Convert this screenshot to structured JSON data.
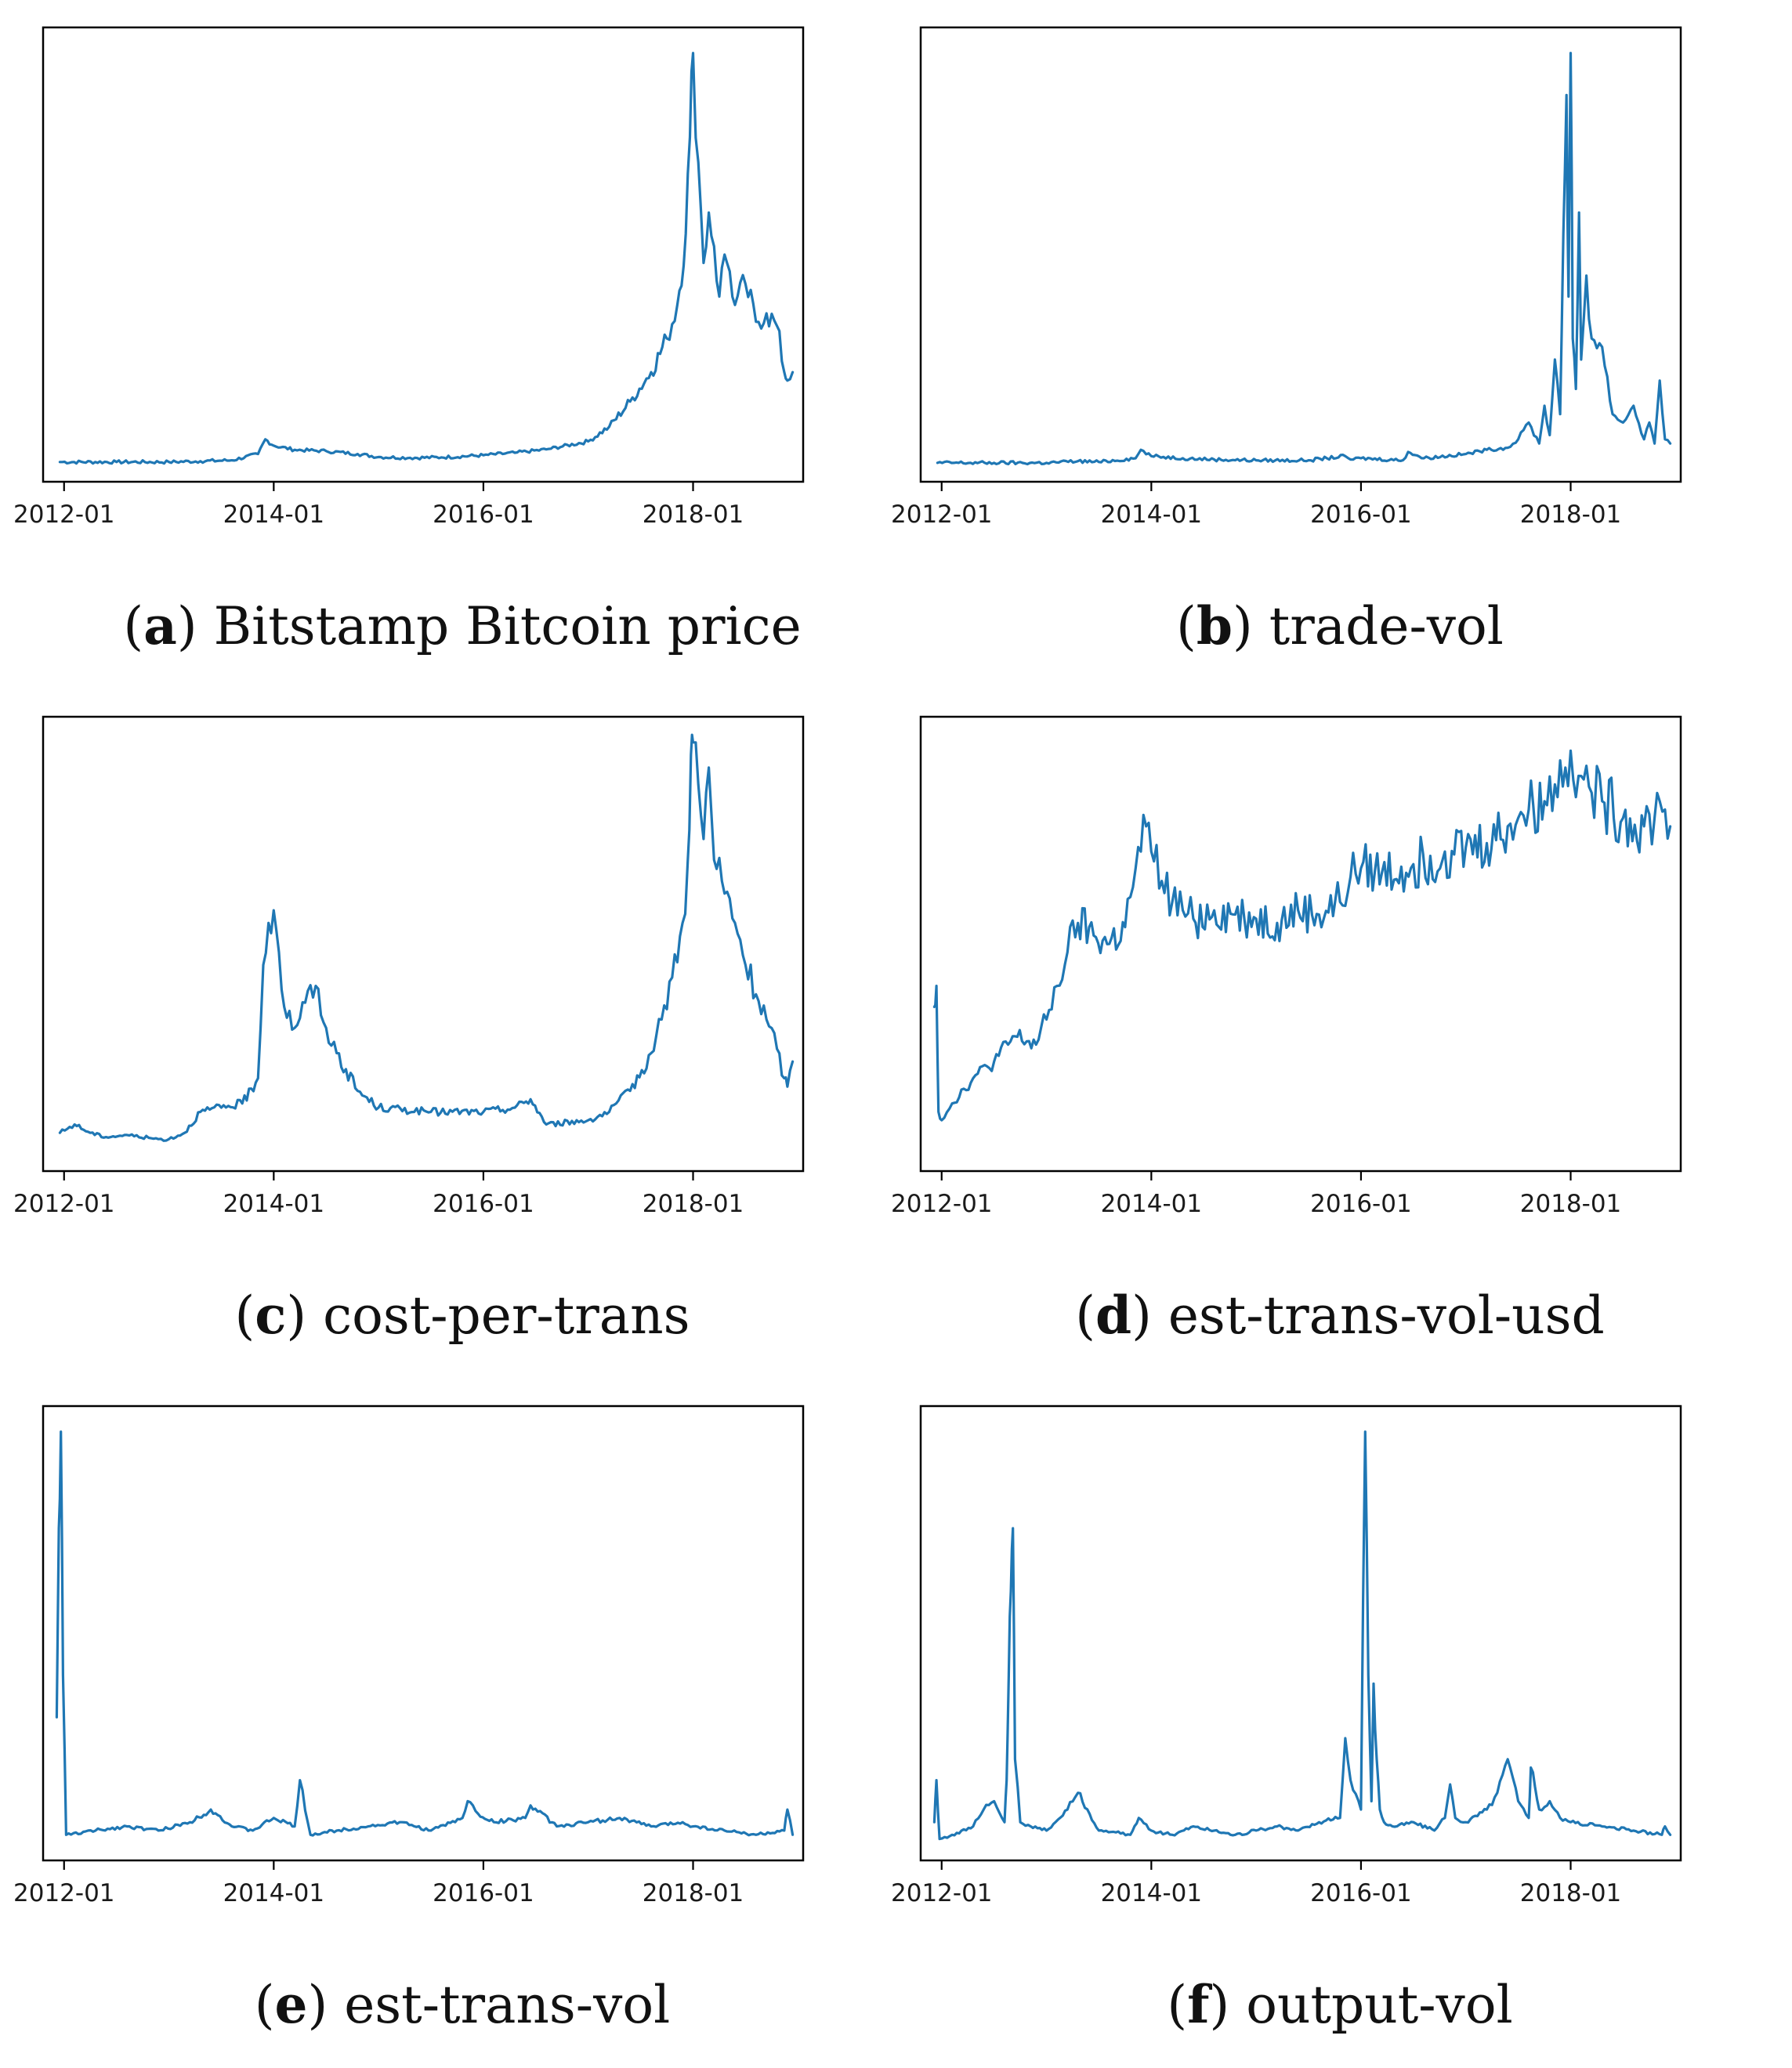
{
  "figure": {
    "line_color": "#1f77b4"
  },
  "chart_data": [
    {
      "type": "line",
      "id": "a",
      "letter": "a",
      "title": "Bitstamp Bitcoin price",
      "xlabel": "",
      "ylabel": "",
      "ylim": [
        0,
        100
      ],
      "x_ticks": [
        "2012-01",
        "2014-01",
        "2016-01",
        "2018-01"
      ],
      "series": [
        {
          "name": "Bitstamp Bitcoin price",
          "x": [
            2011.96,
            2012.5,
            2013.0,
            2013.3,
            2013.6,
            2013.85,
            2013.92,
            2014.0,
            2014.2,
            2014.5,
            2014.8,
            2015.0,
            2015.3,
            2015.6,
            2016.0,
            2016.3,
            2016.6,
            2017.0,
            2017.2,
            2017.4,
            2017.6,
            2017.75,
            2017.85,
            2017.93,
            2017.97,
            2018.0,
            2018.05,
            2018.1,
            2018.15,
            2018.2,
            2018.25,
            2018.3,
            2018.35,
            2018.4,
            2018.5,
            2018.6,
            2018.7,
            2018.8,
            2018.87,
            2018.9,
            2018.95
          ],
          "values": [
            0.6,
            0.6,
            0.6,
            0.8,
            1.0,
            2.5,
            6.0,
            4.5,
            3.5,
            3.2,
            2.5,
            1.8,
            1.6,
            1.7,
            2.2,
            2.8,
            3.6,
            5.5,
            9.0,
            15.0,
            22.0,
            30.0,
            38.0,
            55.0,
            78.0,
            98.0,
            72.0,
            48.0,
            60.0,
            52.0,
            40.0,
            50.0,
            46.0,
            38.0,
            43.0,
            34.0,
            36.0,
            33.0,
            22.0,
            20.0,
            22.0
          ]
        }
      ]
    },
    {
      "type": "line",
      "id": "b",
      "letter": "b",
      "title": "trade-vol",
      "xlabel": "",
      "ylabel": "",
      "ylim": [
        0,
        100
      ],
      "x_ticks": [
        "2012-01",
        "2014-01",
        "2016-01",
        "2018-01"
      ],
      "series": [
        {
          "name": "trade-vol",
          "x": [
            2011.96,
            2012.5,
            2013.0,
            2013.3,
            2013.5,
            2013.85,
            2013.9,
            2014.0,
            2014.3,
            2014.6,
            2015.0,
            2015.5,
            2015.85,
            2015.9,
            2016.0,
            2016.4,
            2016.45,
            2016.6,
            2017.0,
            2017.2,
            2017.4,
            2017.5,
            2017.6,
            2017.7,
            2017.75,
            2017.8,
            2017.85,
            2017.9,
            2017.93,
            2017.96,
            2017.98,
            2018.0,
            2018.02,
            2018.05,
            2018.08,
            2018.1,
            2018.15,
            2018.2,
            2018.3,
            2018.4,
            2018.5,
            2018.6,
            2018.7,
            2018.75,
            2018.8,
            2018.85,
            2018.9,
            2018.95
          ],
          "values": [
            0.4,
            0.4,
            0.4,
            0.8,
            0.6,
            1.5,
            3.5,
            2.0,
            1.5,
            1.2,
            1.0,
            1.0,
            2.0,
            1.2,
            1.5,
            1.0,
            3.0,
            1.5,
            2.5,
            3.5,
            4.0,
            6.0,
            10.0,
            5.0,
            14.0,
            7.0,
            25.0,
            12.0,
            55.0,
            88.0,
            40.0,
            98.0,
            30.0,
            18.0,
            60.0,
            25.0,
            45.0,
            30.0,
            28.0,
            12.0,
            10.0,
            14.0,
            6.0,
            10.0,
            5.0,
            20.0,
            6.0,
            5.0
          ]
        }
      ]
    },
    {
      "type": "line",
      "id": "c",
      "letter": "c",
      "title": "cost-per-trans",
      "xlabel": "",
      "ylabel": "",
      "ylim": [
        0,
        100
      ],
      "x_ticks": [
        "2012-01",
        "2014-01",
        "2016-01",
        "2018-01"
      ],
      "series": [
        {
          "name": "cost-per-trans",
          "x": [
            2011.96,
            2012.1,
            2012.25,
            2012.4,
            2012.6,
            2012.9,
            2013.0,
            2013.15,
            2013.3,
            2013.5,
            2013.7,
            2013.85,
            2013.9,
            2013.95,
            2014.0,
            2014.05,
            2014.1,
            2014.2,
            2014.3,
            2014.4,
            2014.45,
            2014.5,
            2014.6,
            2014.8,
            2015.0,
            2015.5,
            2016.0,
            2016.3,
            2016.45,
            2016.6,
            2017.0,
            2017.2,
            2017.4,
            2017.6,
            2017.7,
            2017.8,
            2017.9,
            2017.95,
            2017.98,
            2018.0,
            2018.05,
            2018.1,
            2018.15,
            2018.2,
            2018.3,
            2018.4,
            2018.5,
            2018.6,
            2018.7,
            2018.8,
            2018.87,
            2018.9,
            2018.95
          ],
          "values": [
            5.0,
            7.0,
            5.0,
            4.0,
            4.5,
            3.5,
            3.5,
            5.0,
            10.0,
            11.0,
            12.0,
            18.0,
            45.0,
            55.0,
            58.0,
            48.0,
            35.0,
            30.0,
            36.0,
            40.0,
            33.0,
            30.0,
            24.0,
            15.0,
            11.0,
            10.0,
            10.0,
            11.0,
            13.0,
            7.0,
            8.0,
            10.0,
            15.0,
            24.0,
            32.0,
            42.0,
            55.0,
            70.0,
            95.0,
            98.0,
            88.0,
            75.0,
            92.0,
            70.0,
            62.0,
            55.0,
            45.0,
            38.0,
            32.0,
            25.0,
            18.0,
            16.0,
            22.0
          ]
        }
      ]
    },
    {
      "type": "line",
      "id": "d",
      "letter": "d",
      "title": "est-trans-vol-usd",
      "xlabel": "",
      "ylabel": "",
      "ylim": [
        0,
        100
      ],
      "x_ticks": [
        "2012-01",
        "2014-01",
        "2016-01",
        "2018-01"
      ],
      "series": [
        {
          "name": "est-trans-vol-usd",
          "x": [
            2011.93,
            2011.95,
            2011.97,
            2012.0,
            2012.1,
            2012.3,
            2012.5,
            2012.7,
            2012.9,
            2013.0,
            2013.1,
            2013.2,
            2013.3,
            2013.45,
            2013.6,
            2013.75,
            2013.85,
            2013.9,
            2013.95,
            2014.0,
            2014.1,
            2014.2,
            2014.3,
            2014.4,
            2014.6,
            2014.8,
            2015.0,
            2015.2,
            2015.4,
            2015.6,
            2015.8,
            2015.9,
            2016.0,
            2016.2,
            2016.5,
            2016.8,
            2017.0,
            2017.2,
            2017.4,
            2017.5,
            2017.6,
            2017.75,
            2017.85,
            2017.95,
            2018.0,
            2018.1,
            2018.2,
            2018.3,
            2018.5,
            2018.7,
            2018.8,
            2018.85,
            2018.9,
            2018.95
          ],
          "values": [
            35,
            40,
            10,
            8,
            12,
            18,
            22,
            28,
            26,
            32,
            40,
            48,
            55,
            52,
            50,
            54,
            68,
            72,
            78,
            72,
            65,
            60,
            58,
            56,
            58,
            57,
            56,
            55,
            58,
            57,
            60,
            66,
            68,
            67,
            69,
            72,
            73,
            74,
            78,
            80,
            82,
            84,
            88,
            92,
            96,
            90,
            86,
            84,
            80,
            78,
            80,
            84,
            82,
            78
          ]
        }
      ]
    },
    {
      "type": "line",
      "id": "e",
      "letter": "e",
      "title": "est-trans-vol",
      "xlabel": "",
      "ylabel": "",
      "ylim": [
        0,
        100
      ],
      "x_ticks": [
        "2012-01",
        "2014-01",
        "2016-01",
        "2018-01"
      ],
      "series": [
        {
          "name": "est-trans-vol",
          "x": [
            2011.93,
            2011.95,
            2011.97,
            2011.99,
            2012.02,
            2012.3,
            2012.6,
            2012.9,
            2013.2,
            2013.4,
            2013.6,
            2013.8,
            2014.0,
            2014.2,
            2014.25,
            2014.35,
            2014.6,
            2014.9,
            2015.2,
            2015.5,
            2015.8,
            2015.85,
            2015.95,
            2016.1,
            2016.4,
            2016.45,
            2016.7,
            2017.0,
            2017.3,
            2017.6,
            2017.9,
            2018.0,
            2018.3,
            2018.6,
            2018.87,
            2018.9,
            2018.95
          ],
          "values": [
            30,
            75,
            98,
            40,
            2,
            3,
            4,
            3,
            5,
            8,
            4,
            3,
            6,
            4,
            15,
            2,
            3,
            4,
            5,
            3,
            6,
            10,
            7,
            5,
            6,
            9,
            4,
            5,
            6,
            4,
            5,
            4,
            3,
            2,
            3,
            8,
            2
          ]
        }
      ]
    },
    {
      "type": "line",
      "id": "f",
      "letter": "f",
      "title": "output-vol",
      "xlabel": "",
      "ylabel": "",
      "ylim": [
        0,
        100
      ],
      "x_ticks": [
        "2012-01",
        "2014-01",
        "2016-01",
        "2018-01"
      ],
      "series": [
        {
          "name": "output-vol",
          "x": [
            2011.93,
            2011.95,
            2011.98,
            2012.1,
            2012.3,
            2012.4,
            2012.5,
            2012.6,
            2012.62,
            2012.64,
            2012.66,
            2012.68,
            2012.7,
            2012.75,
            2012.85,
            2013.0,
            2013.2,
            2013.3,
            2013.5,
            2013.8,
            2013.88,
            2014.0,
            2014.2,
            2014.4,
            2014.6,
            2014.8,
            2015.0,
            2015.2,
            2015.4,
            2015.6,
            2015.8,
            2015.85,
            2015.9,
            2016.0,
            2016.04,
            2016.07,
            2016.1,
            2016.12,
            2016.15,
            2016.18,
            2016.22,
            2016.3,
            2016.5,
            2016.7,
            2016.8,
            2016.85,
            2016.9,
            2017.0,
            2017.2,
            2017.3,
            2017.4,
            2017.5,
            2017.6,
            2017.62,
            2017.7,
            2017.8,
            2017.9,
            2018.0,
            2018.3,
            2018.6,
            2018.87,
            2018.9,
            2018.95
          ],
          "values": [
            5,
            15,
            1,
            2,
            4,
            8,
            10,
            5,
            15,
            40,
            60,
            75,
            20,
            5,
            4,
            3,
            8,
            12,
            3,
            2,
            6,
            3,
            2,
            4,
            3,
            2,
            3,
            4,
            3,
            5,
            6,
            25,
            15,
            8,
            98,
            40,
            10,
            38,
            20,
            8,
            5,
            4,
            5,
            3,
            6,
            14,
            6,
            5,
            8,
            12,
            20,
            10,
            6,
            18,
            8,
            10,
            6,
            5,
            4,
            3,
            2,
            4,
            2
          ]
        }
      ]
    }
  ]
}
